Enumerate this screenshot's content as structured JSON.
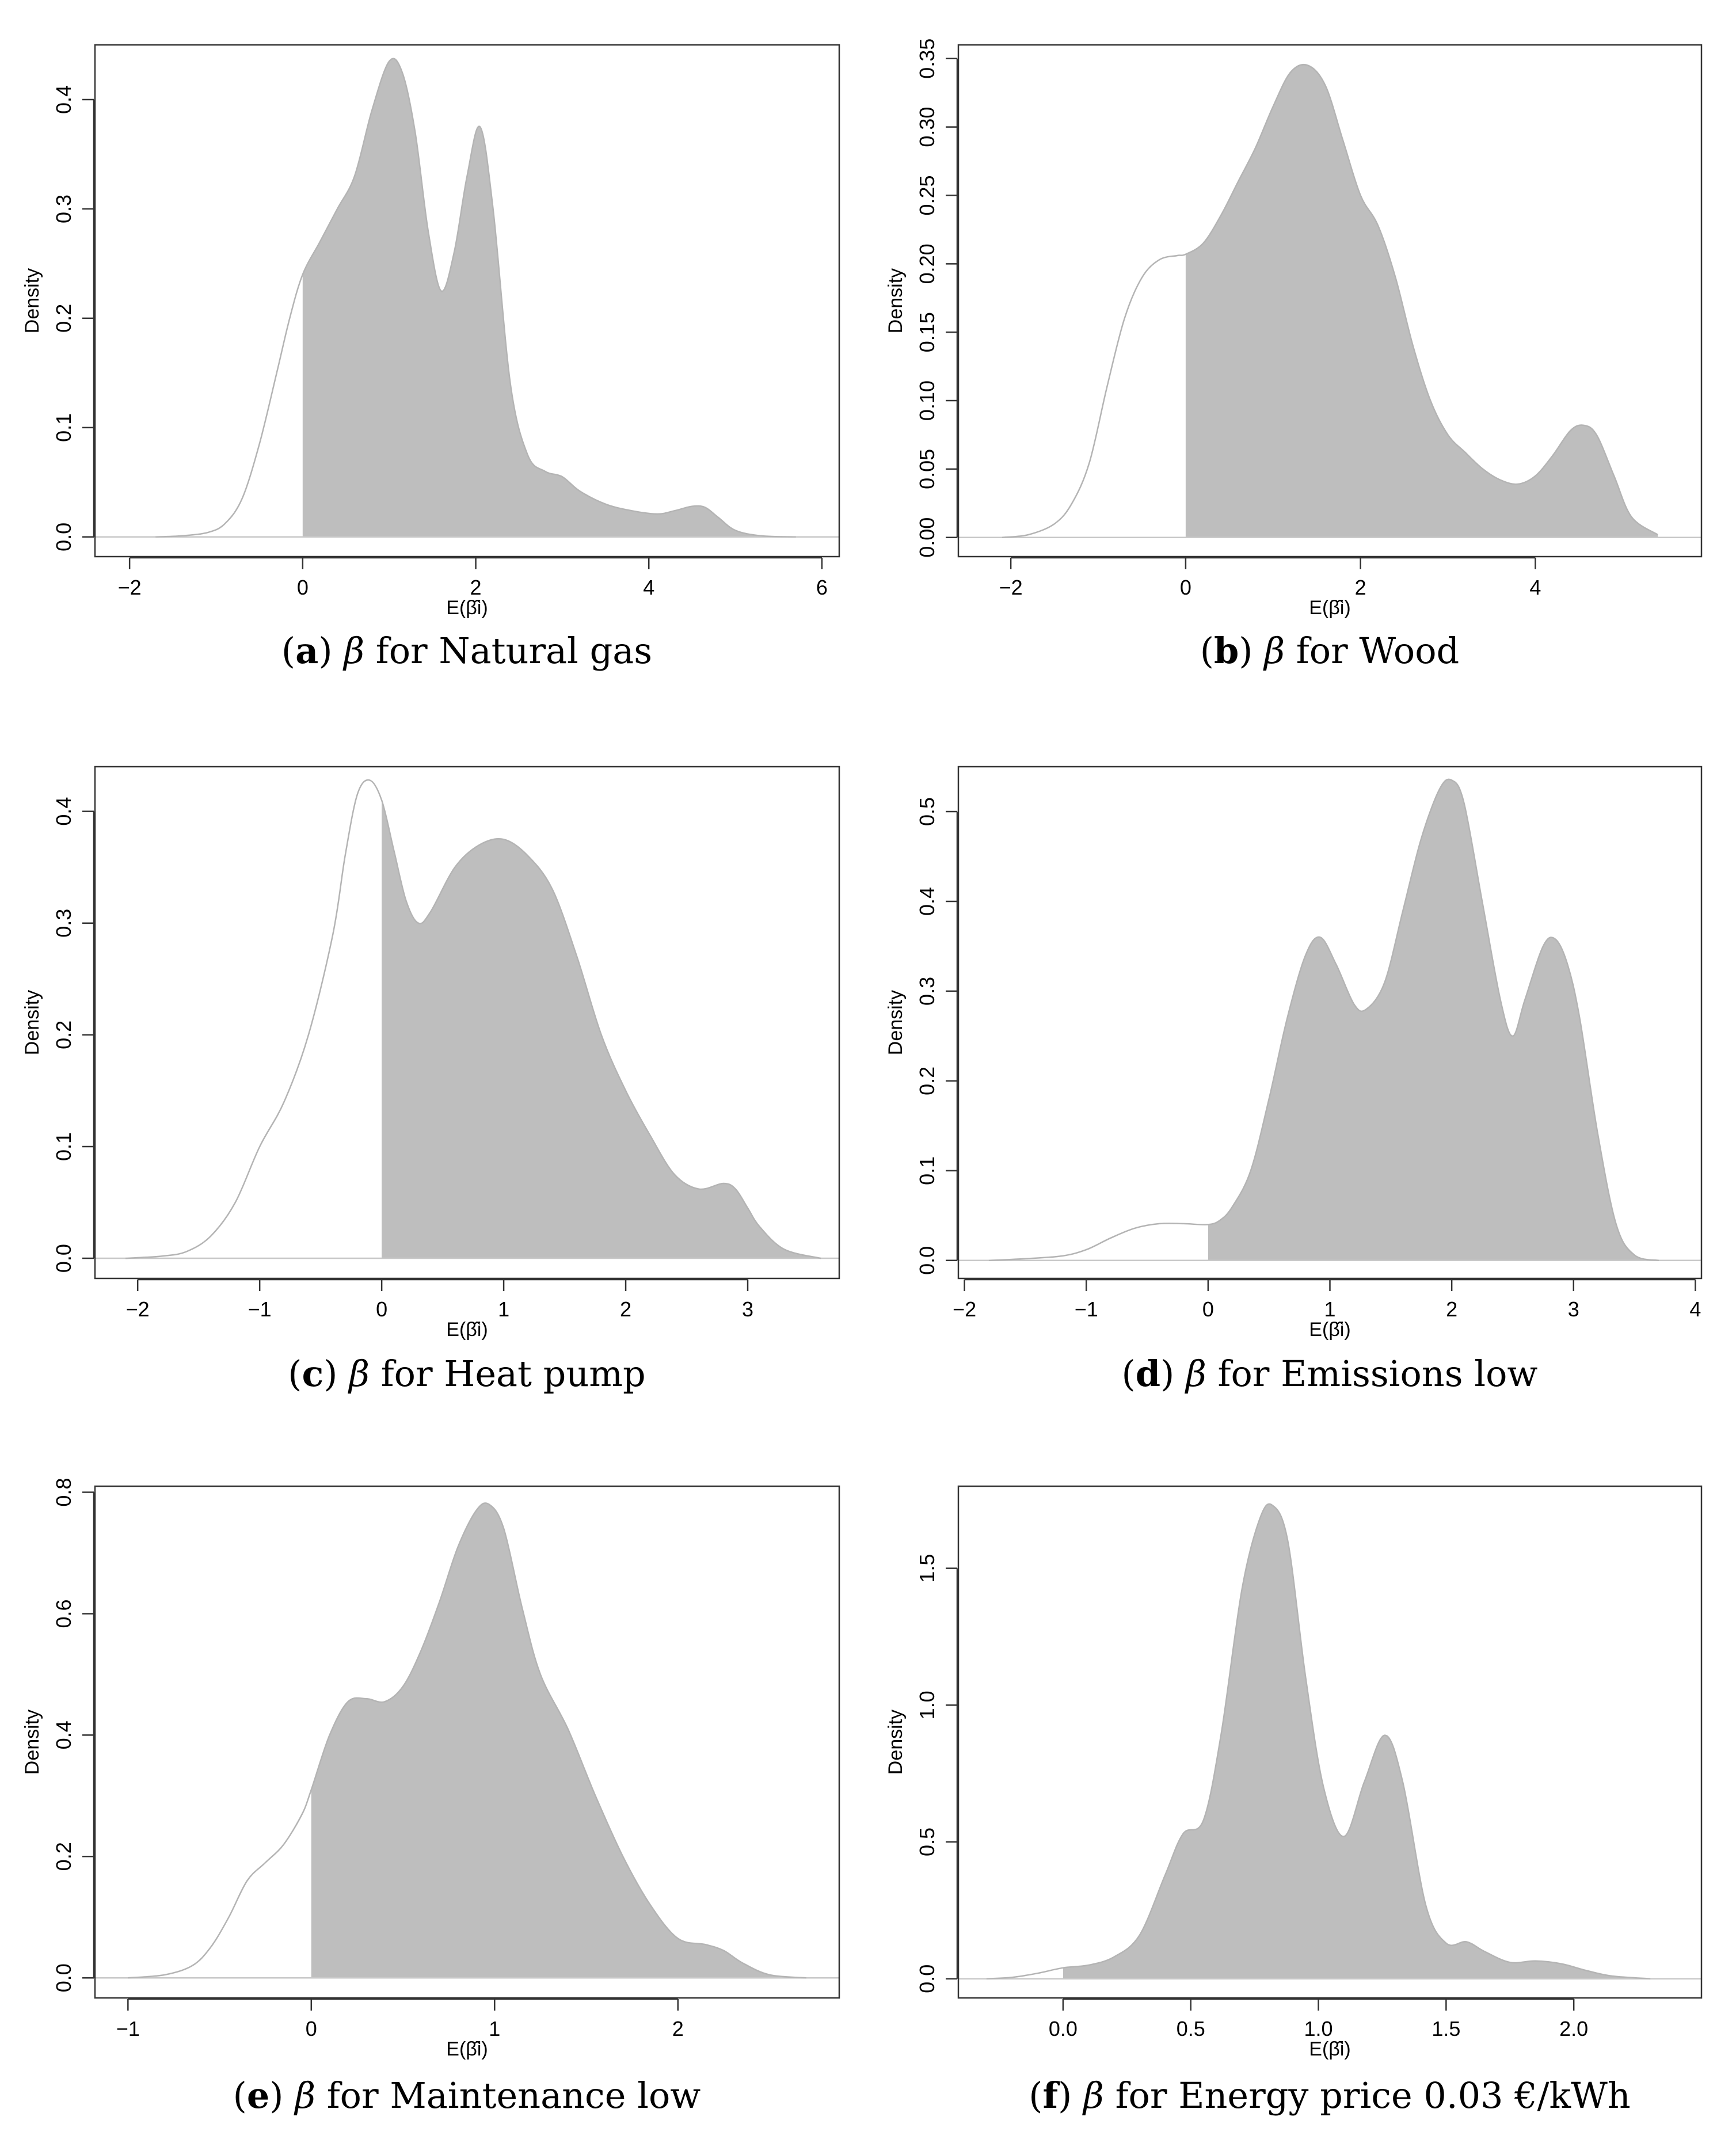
{
  "figure": {
    "panels_order": [
      "a",
      "b",
      "c",
      "d",
      "e",
      "f"
    ]
  },
  "chart_data": [
    {
      "id": "a",
      "type": "area",
      "caption_letter": "a",
      "caption_symbol": "β",
      "caption_text": " for Natural gas",
      "ylabel": "Density",
      "xlabel": "E(β̂i)",
      "xlim": [
        -2.4,
        6.2
      ],
      "ylim": [
        -0.018,
        0.45
      ],
      "xticks": [
        -2,
        0,
        2,
        4,
        6
      ],
      "xtick_labels": [
        "−2",
        "0",
        "2",
        "4",
        "6"
      ],
      "yticks": [
        0.0,
        0.1,
        0.2,
        0.3,
        0.4
      ],
      "ytick_labels": [
        "0.0",
        "0.1",
        "0.2",
        "0.3",
        "0.4"
      ],
      "shade_from": 0,
      "density": {
        "x": [
          -1.7,
          -1.4,
          -1.1,
          -0.9,
          -0.7,
          -0.5,
          -0.3,
          -0.15,
          0,
          0.2,
          0.4,
          0.6,
          0.8,
          1.0,
          1.15,
          1.3,
          1.45,
          1.6,
          1.75,
          1.9,
          2.05,
          2.2,
          2.4,
          2.6,
          2.8,
          3.0,
          3.2,
          3.5,
          3.8,
          4.1,
          4.3,
          4.5,
          4.65,
          4.8,
          5.0,
          5.3,
          5.7
        ],
        "y": [
          0.0,
          0.001,
          0.004,
          0.012,
          0.035,
          0.085,
          0.15,
          0.2,
          0.24,
          0.27,
          0.3,
          0.33,
          0.39,
          0.435,
          0.425,
          0.37,
          0.28,
          0.225,
          0.26,
          0.33,
          0.375,
          0.3,
          0.14,
          0.075,
          0.06,
          0.055,
          0.042,
          0.03,
          0.024,
          0.021,
          0.024,
          0.028,
          0.027,
          0.018,
          0.006,
          0.001,
          0.0
        ]
      }
    },
    {
      "id": "b",
      "type": "area",
      "caption_letter": "b",
      "caption_symbol": "β",
      "caption_text": " for Wood",
      "ylabel": "Density",
      "xlabel": "E(β̂i)",
      "xlim": [
        -2.6,
        5.9
      ],
      "ylim": [
        -0.014,
        0.36
      ],
      "xticks": [
        -2,
        0,
        2,
        4
      ],
      "xtick_labels": [
        "−2",
        "0",
        "2",
        "4"
      ],
      "yticks": [
        0.0,
        0.05,
        0.1,
        0.15,
        0.2,
        0.25,
        0.3,
        0.35
      ],
      "ytick_labels": [
        "0.00",
        "0.05",
        "0.10",
        "0.15",
        "0.20",
        "0.25",
        "0.30",
        "0.35"
      ],
      "shade_from": 0,
      "density": {
        "x": [
          -2.1,
          -1.8,
          -1.5,
          -1.3,
          -1.1,
          -0.9,
          -0.7,
          -0.5,
          -0.3,
          -0.1,
          0,
          0.2,
          0.4,
          0.6,
          0.8,
          1.0,
          1.2,
          1.4,
          1.6,
          1.8,
          2.0,
          2.2,
          2.4,
          2.6,
          2.8,
          3.0,
          3.2,
          3.4,
          3.6,
          3.8,
          4.0,
          4.2,
          4.4,
          4.55,
          4.7,
          4.9,
          5.1,
          5.4
        ],
        "y": [
          0.0,
          0.002,
          0.01,
          0.025,
          0.055,
          0.11,
          0.16,
          0.19,
          0.203,
          0.206,
          0.207,
          0.215,
          0.235,
          0.26,
          0.285,
          0.315,
          0.34,
          0.345,
          0.33,
          0.29,
          0.25,
          0.228,
          0.19,
          0.14,
          0.1,
          0.075,
          0.062,
          0.05,
          0.042,
          0.039,
          0.045,
          0.06,
          0.078,
          0.082,
          0.075,
          0.045,
          0.015,
          0.002
        ]
      }
    },
    {
      "id": "c",
      "type": "area",
      "caption_letter": "c",
      "caption_symbol": "β",
      "caption_text": " for Heat pump",
      "ylabel": "Density",
      "xlabel": "E(β̂i)",
      "xlim": [
        -2.35,
        3.75
      ],
      "ylim": [
        -0.018,
        0.44
      ],
      "xticks": [
        -2,
        -1,
        0,
        1,
        2,
        3
      ],
      "xtick_labels": [
        "−2",
        "−1",
        "0",
        "1",
        "2",
        "3"
      ],
      "yticks": [
        0.0,
        0.1,
        0.2,
        0.3,
        0.4
      ],
      "ytick_labels": [
        "0.0",
        "0.1",
        "0.2",
        "0.3",
        "0.4"
      ],
      "shade_from": 0,
      "density": {
        "x": [
          -2.1,
          -1.8,
          -1.6,
          -1.4,
          -1.2,
          -1.0,
          -0.8,
          -0.6,
          -0.4,
          -0.3,
          -0.2,
          -0.1,
          0,
          0.1,
          0.2,
          0.3,
          0.4,
          0.6,
          0.8,
          1.0,
          1.2,
          1.4,
          1.6,
          1.8,
          2.0,
          2.2,
          2.4,
          2.6,
          2.8,
          2.9,
          3.0,
          3.1,
          3.3,
          3.6
        ],
        "y": [
          0.0,
          0.002,
          0.006,
          0.02,
          0.05,
          0.1,
          0.14,
          0.2,
          0.29,
          0.36,
          0.415,
          0.428,
          0.41,
          0.365,
          0.32,
          0.3,
          0.31,
          0.35,
          0.37,
          0.375,
          0.36,
          0.33,
          0.27,
          0.2,
          0.15,
          0.11,
          0.075,
          0.062,
          0.067,
          0.062,
          0.045,
          0.028,
          0.008,
          0.0
        ]
      }
    },
    {
      "id": "d",
      "type": "area",
      "caption_letter": "d",
      "caption_symbol": "β",
      "caption_text": " for Emissions low",
      "ylabel": "Density",
      "xlabel": "E(β̂i)",
      "xlim": [
        -2.05,
        4.05
      ],
      "ylim": [
        -0.02,
        0.55
      ],
      "xticks": [
        -2,
        -1,
        0,
        1,
        2,
        3,
        4
      ],
      "xtick_labels": [
        "−2",
        "−1",
        "0",
        "1",
        "2",
        "3",
        "4"
      ],
      "yticks": [
        0.0,
        0.1,
        0.2,
        0.3,
        0.4,
        0.5
      ],
      "ytick_labels": [
        "0.0",
        "0.1",
        "0.2",
        "0.3",
        "0.4",
        "0.5"
      ],
      "shade_from": 0,
      "density": {
        "x": [
          -1.8,
          -1.5,
          -1.2,
          -1.0,
          -0.8,
          -0.6,
          -0.4,
          -0.2,
          0,
          0.1,
          0.2,
          0.35,
          0.5,
          0.65,
          0.8,
          0.92,
          1.05,
          1.2,
          1.3,
          1.45,
          1.6,
          1.75,
          1.9,
          2.0,
          2.1,
          2.25,
          2.4,
          2.5,
          2.6,
          2.75,
          2.85,
          2.95,
          3.05,
          3.2,
          3.35,
          3.5,
          3.7
        ],
        "y": [
          0.0,
          0.002,
          0.005,
          0.012,
          0.025,
          0.036,
          0.041,
          0.041,
          0.04,
          0.045,
          0.06,
          0.1,
          0.18,
          0.27,
          0.34,
          0.36,
          0.33,
          0.285,
          0.28,
          0.31,
          0.39,
          0.47,
          0.525,
          0.535,
          0.51,
          0.4,
          0.29,
          0.25,
          0.29,
          0.35,
          0.358,
          0.33,
          0.27,
          0.14,
          0.04,
          0.006,
          0.0
        ]
      }
    },
    {
      "id": "e",
      "type": "area",
      "caption_letter": "e",
      "caption_symbol": "β",
      "caption_text": " for Maintenance low",
      "ylabel": "Density",
      "xlabel": "E(β̂i)",
      "xlim": [
        -1.18,
        2.88
      ],
      "ylim": [
        -0.033,
        0.81
      ],
      "xticks": [
        -1,
        0,
        1,
        2
      ],
      "xtick_labels": [
        "−1",
        "0",
        "1",
        "2"
      ],
      "yticks": [
        0.0,
        0.2,
        0.4,
        0.6,
        0.8
      ],
      "ytick_labels": [
        "0.0",
        "0.2",
        "0.4",
        "0.6",
        "0.8"
      ],
      "shade_from": 0,
      "density": {
        "x": [
          -1.0,
          -0.8,
          -0.65,
          -0.55,
          -0.45,
          -0.35,
          -0.25,
          -0.15,
          -0.05,
          0,
          0.1,
          0.2,
          0.3,
          0.4,
          0.5,
          0.6,
          0.7,
          0.8,
          0.9,
          0.97,
          1.05,
          1.15,
          1.25,
          1.4,
          1.55,
          1.7,
          1.85,
          2.0,
          2.15,
          2.25,
          2.35,
          2.5,
          2.7
        ],
        "y": [
          0.0,
          0.005,
          0.02,
          0.05,
          0.1,
          0.16,
          0.19,
          0.22,
          0.27,
          0.31,
          0.4,
          0.455,
          0.46,
          0.455,
          0.48,
          0.54,
          0.62,
          0.71,
          0.77,
          0.78,
          0.74,
          0.61,
          0.5,
          0.41,
          0.3,
          0.2,
          0.12,
          0.065,
          0.055,
          0.045,
          0.025,
          0.005,
          0.0
        ]
      }
    },
    {
      "id": "f",
      "type": "area",
      "caption_letter": "f",
      "caption_symbol": "β",
      "caption_text": " for Energy price 0.03 €/kWh",
      "ylabel": "Density",
      "xlabel": "E(β̂i)",
      "xlim": [
        -0.41,
        2.5
      ],
      "ylim": [
        -0.07,
        1.8
      ],
      "xticks": [
        0.0,
        0.5,
        1.0,
        1.5,
        2.0
      ],
      "xtick_labels": [
        "0.0",
        "0.5",
        "1.0",
        "1.5",
        "2.0"
      ],
      "yticks": [
        0.0,
        0.5,
        1.0,
        1.5
      ],
      "ytick_labels": [
        "0.0",
        "0.5",
        "1.0",
        "1.5"
      ],
      "shade_from": 0,
      "density": {
        "x": [
          -0.3,
          -0.2,
          -0.1,
          0,
          0.1,
          0.2,
          0.3,
          0.4,
          0.47,
          0.55,
          0.62,
          0.7,
          0.77,
          0.82,
          0.88,
          0.95,
          1.02,
          1.1,
          1.18,
          1.26,
          1.33,
          1.42,
          1.5,
          1.58,
          1.65,
          1.75,
          1.85,
          1.95,
          2.05,
          2.15,
          2.3
        ],
        "y": [
          0.0,
          0.005,
          0.02,
          0.04,
          0.05,
          0.08,
          0.16,
          0.38,
          0.53,
          0.58,
          0.9,
          1.42,
          1.68,
          1.73,
          1.6,
          1.1,
          0.7,
          0.52,
          0.72,
          0.89,
          0.72,
          0.27,
          0.13,
          0.135,
          0.1,
          0.06,
          0.065,
          0.055,
          0.03,
          0.01,
          0.0
        ]
      }
    }
  ]
}
